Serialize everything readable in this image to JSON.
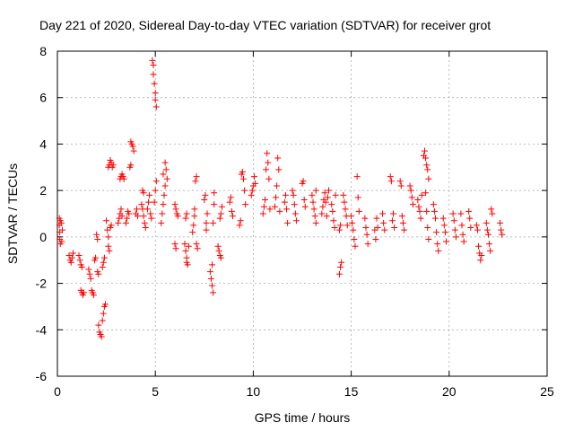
{
  "chart_data": {
    "type": "scatter",
    "title": "Day 221 of 2020, Sidereal Day-to-day VTEC variation (SDTVAR) for receiver grot",
    "xlabel": "GPS time / hours",
    "ylabel": "SDTVAR / TECUs",
    "xlim": [
      0,
      25
    ],
    "ylim": [
      -6,
      8
    ],
    "xticks": [
      0,
      5,
      10,
      15,
      20,
      25
    ],
    "yticks": [
      -6,
      -4,
      -2,
      0,
      2,
      4,
      6,
      8
    ],
    "grid": true,
    "marker": "+",
    "color": "#ff0000",
    "series": [
      {
        "name": "SDTVAR",
        "points": [
          [
            0.1,
            0.8
          ],
          [
            0.1,
            0.5
          ],
          [
            0.12,
            0.2
          ],
          [
            0.12,
            -0.1
          ],
          [
            0.15,
            -0.3
          ],
          [
            0.15,
            0.7
          ],
          [
            0.2,
            0.6
          ],
          [
            0.22,
            -0.2
          ],
          [
            0.25,
            0.3
          ],
          [
            0.6,
            -0.8
          ],
          [
            0.65,
            -1.0
          ],
          [
            0.7,
            -1.1
          ],
          [
            0.75,
            -0.9
          ],
          [
            0.8,
            -0.7
          ],
          [
            1.1,
            -0.8
          ],
          [
            1.15,
            -1.0
          ],
          [
            1.2,
            -1.2
          ],
          [
            1.25,
            -1.3
          ],
          [
            1.2,
            -2.3
          ],
          [
            1.25,
            -2.4
          ],
          [
            1.3,
            -2.5
          ],
          [
            1.35,
            -2.4
          ],
          [
            1.6,
            -1.4
          ],
          [
            1.65,
            -1.6
          ],
          [
            1.7,
            -1.8
          ],
          [
            1.75,
            -2.3
          ],
          [
            1.8,
            -2.4
          ],
          [
            1.85,
            -2.5
          ],
          [
            1.9,
            -1.0
          ],
          [
            1.95,
            -0.9
          ],
          [
            2.0,
            0.1
          ],
          [
            2.05,
            -0.1
          ],
          [
            2.05,
            -1.5
          ],
          [
            2.1,
            -1.6
          ],
          [
            2.1,
            -3.8
          ],
          [
            2.15,
            -4.1
          ],
          [
            2.2,
            -4.2
          ],
          [
            2.25,
            -4.3
          ],
          [
            2.3,
            -3.6
          ],
          [
            2.35,
            -3.3
          ],
          [
            2.4,
            -3.0
          ],
          [
            2.45,
            -2.9
          ],
          [
            2.3,
            -1.3
          ],
          [
            2.35,
            -1.1
          ],
          [
            2.4,
            -0.9
          ],
          [
            2.5,
            0.7
          ],
          [
            2.55,
            0.3
          ],
          [
            2.6,
            0.0
          ],
          [
            2.6,
            -0.4
          ],
          [
            2.65,
            -0.6
          ],
          [
            2.7,
            0.4
          ],
          [
            2.75,
            0.5
          ],
          [
            2.6,
            3.0
          ],
          [
            2.65,
            3.1
          ],
          [
            2.7,
            3.3
          ],
          [
            2.75,
            3.2
          ],
          [
            2.8,
            3.0
          ],
          [
            2.85,
            3.1
          ],
          [
            3.1,
            0.6
          ],
          [
            3.15,
            0.8
          ],
          [
            3.2,
            1.0
          ],
          [
            3.25,
            1.2
          ],
          [
            3.3,
            0.9
          ],
          [
            3.2,
            2.5
          ],
          [
            3.25,
            2.6
          ],
          [
            3.3,
            2.7
          ],
          [
            3.35,
            2.6
          ],
          [
            3.4,
            2.5
          ],
          [
            3.5,
            0.6
          ],
          [
            3.55,
            0.8
          ],
          [
            3.6,
            1.1
          ],
          [
            3.65,
            1.0
          ],
          [
            3.7,
            3.0
          ],
          [
            3.75,
            3.1
          ],
          [
            3.75,
            4.1
          ],
          [
            3.8,
            4.0
          ],
          [
            3.85,
            3.9
          ],
          [
            3.9,
            3.7
          ],
          [
            4.0,
            1.0
          ],
          [
            4.05,
            1.2
          ],
          [
            4.1,
            0.9
          ],
          [
            4.3,
            1.4
          ],
          [
            4.35,
            1.2
          ],
          [
            4.4,
            0.9
          ],
          [
            4.45,
            0.6
          ],
          [
            4.5,
            0.4
          ],
          [
            4.35,
            2.0
          ],
          [
            4.4,
            1.9
          ],
          [
            4.6,
            1.2
          ],
          [
            4.65,
            1.5
          ],
          [
            4.7,
            1.8
          ],
          [
            4.75,
            1.0
          ],
          [
            4.8,
            0.8
          ],
          [
            4.85,
            7.6
          ],
          [
            4.9,
            7.4
          ],
          [
            4.9,
            7.0
          ],
          [
            4.95,
            6.6
          ],
          [
            5.0,
            6.2
          ],
          [
            5.0,
            5.9
          ],
          [
            5.05,
            5.6
          ],
          [
            4.95,
            1.5
          ],
          [
            5.0,
            2.0
          ],
          [
            5.05,
            2.4
          ],
          [
            5.3,
            0.6
          ],
          [
            5.35,
            1.0
          ],
          [
            5.4,
            1.4
          ],
          [
            5.45,
            1.8
          ],
          [
            5.5,
            2.2
          ],
          [
            5.5,
            3.2
          ],
          [
            5.55,
            2.9
          ],
          [
            5.6,
            2.5
          ],
          [
            5.4,
            2.7
          ],
          [
            6.0,
            1.4
          ],
          [
            6.05,
            1.2
          ],
          [
            6.1,
            1.0
          ],
          [
            6.15,
            0.9
          ],
          [
            6.0,
            -0.3
          ],
          [
            6.05,
            -0.5
          ],
          [
            6.5,
            -0.3
          ],
          [
            6.55,
            -0.6
          ],
          [
            6.6,
            -0.9
          ],
          [
            6.6,
            -1.1
          ],
          [
            6.65,
            -1.2
          ],
          [
            6.7,
            -0.4
          ],
          [
            6.55,
            0.8
          ],
          [
            6.6,
            1.0
          ],
          [
            6.9,
            0.2
          ],
          [
            6.95,
            0.5
          ],
          [
            7.0,
            0.9
          ],
          [
            7.0,
            1.2
          ],
          [
            7.05,
            2.4
          ],
          [
            7.1,
            2.6
          ],
          [
            7.1,
            -0.3
          ],
          [
            7.15,
            -0.5
          ],
          [
            7.5,
            1.6
          ],
          [
            7.55,
            1.8
          ],
          [
            7.6,
            0.6
          ],
          [
            7.6,
            0.3
          ],
          [
            7.65,
            1.0
          ],
          [
            7.8,
            -1.5
          ],
          [
            7.85,
            -1.8
          ],
          [
            7.9,
            -2.1
          ],
          [
            7.95,
            -2.4
          ],
          [
            7.9,
            -1.2
          ],
          [
            7.95,
            0.6
          ],
          [
            8.0,
            1.4
          ],
          [
            8.0,
            1.9
          ],
          [
            8.2,
            -0.4
          ],
          [
            8.25,
            -0.6
          ],
          [
            8.3,
            -0.8
          ],
          [
            8.35,
            -0.9
          ],
          [
            8.3,
            0.8
          ],
          [
            8.35,
            1.0
          ],
          [
            8.4,
            1.3
          ],
          [
            8.8,
            1.5
          ],
          [
            8.85,
            1.7
          ],
          [
            8.9,
            1.1
          ],
          [
            8.95,
            0.9
          ],
          [
            9.3,
            0.5
          ],
          [
            9.35,
            0.7
          ],
          [
            9.4,
            2.7
          ],
          [
            9.45,
            2.8
          ],
          [
            9.5,
            2.5
          ],
          [
            9.55,
            2.0
          ],
          [
            9.6,
            1.4
          ],
          [
            9.9,
            1.8
          ],
          [
            9.95,
            2.0
          ],
          [
            10.0,
            2.2
          ],
          [
            10.05,
            2.6
          ],
          [
            10.1,
            2.3
          ],
          [
            10.5,
            1.0
          ],
          [
            10.55,
            1.3
          ],
          [
            10.6,
            1.6
          ],
          [
            10.65,
            2.9
          ],
          [
            10.7,
            3.6
          ],
          [
            10.75,
            3.2
          ],
          [
            10.8,
            2.5
          ],
          [
            10.85,
            1.2
          ],
          [
            11.1,
            1.3
          ],
          [
            11.15,
            1.7
          ],
          [
            11.2,
            2.2
          ],
          [
            11.25,
            3.4
          ],
          [
            11.3,
            2.9
          ],
          [
            11.35,
            1.1
          ],
          [
            11.6,
            1.5
          ],
          [
            11.65,
            1.8
          ],
          [
            11.7,
            1.2
          ],
          [
            11.75,
            0.6
          ],
          [
            12.0,
            2.0
          ],
          [
            12.05,
            1.8
          ],
          [
            12.1,
            1.4
          ],
          [
            12.15,
            1.0
          ],
          [
            12.2,
            0.7
          ],
          [
            12.5,
            2.3
          ],
          [
            12.55,
            2.4
          ],
          [
            12.6,
            1.6
          ],
          [
            12.65,
            1.3
          ],
          [
            13.0,
            1.8
          ],
          [
            13.05,
            1.5
          ],
          [
            13.1,
            1.2
          ],
          [
            13.15,
            0.9
          ],
          [
            13.2,
            0.6
          ],
          [
            13.2,
            2.0
          ],
          [
            13.5,
            1.0
          ],
          [
            13.55,
            1.3
          ],
          [
            13.6,
            1.6
          ],
          [
            13.65,
            1.9
          ],
          [
            13.7,
            1.5
          ],
          [
            13.75,
            0.9
          ],
          [
            13.8,
            1.7
          ],
          [
            13.85,
            2.0
          ],
          [
            14.0,
            1.4
          ],
          [
            14.05,
            1.1
          ],
          [
            14.1,
            0.7
          ],
          [
            14.15,
            0.4
          ],
          [
            14.2,
            1.8
          ],
          [
            14.4,
            -1.6
          ],
          [
            14.45,
            -1.3
          ],
          [
            14.5,
            -1.1
          ],
          [
            14.4,
            0.3
          ],
          [
            14.45,
            0.5
          ],
          [
            14.6,
            1.8
          ],
          [
            14.65,
            1.5
          ],
          [
            14.7,
            1.2
          ],
          [
            14.75,
            0.9
          ],
          [
            14.8,
            0.5
          ],
          [
            15.0,
            0.9
          ],
          [
            15.05,
            0.6
          ],
          [
            15.1,
            0.3
          ],
          [
            15.15,
            -0.1
          ],
          [
            15.2,
            -0.4
          ],
          [
            15.3,
            2.6
          ],
          [
            15.35,
            1.7
          ],
          [
            15.4,
            1.1
          ],
          [
            15.7,
            0.8
          ],
          [
            15.75,
            0.4
          ],
          [
            15.8,
            0.1
          ],
          [
            15.85,
            -0.3
          ],
          [
            16.2,
            0.3
          ],
          [
            16.25,
            -0.1
          ],
          [
            16.3,
            0.8
          ],
          [
            16.35,
            0.4
          ],
          [
            16.6,
            1.0
          ],
          [
            16.65,
            0.6
          ],
          [
            16.7,
            0.3
          ],
          [
            17.0,
            2.6
          ],
          [
            17.05,
            2.4
          ],
          [
            17.1,
            0.7
          ],
          [
            17.15,
            1.0
          ],
          [
            17.2,
            0.4
          ],
          [
            17.5,
            2.4
          ],
          [
            17.55,
            2.2
          ],
          [
            17.6,
            0.9
          ],
          [
            17.65,
            0.6
          ],
          [
            17.7,
            0.3
          ],
          [
            18.0,
            2.2
          ],
          [
            18.05,
            2.0
          ],
          [
            18.1,
            1.7
          ],
          [
            18.15,
            1.4
          ],
          [
            18.4,
            1.6
          ],
          [
            18.45,
            1.3
          ],
          [
            18.5,
            1.1
          ],
          [
            18.55,
            0.8
          ],
          [
            18.6,
            1.8
          ],
          [
            18.7,
            3.5
          ],
          [
            18.75,
            3.7
          ],
          [
            18.8,
            3.4
          ],
          [
            18.85,
            3.1
          ],
          [
            18.9,
            2.9
          ],
          [
            18.95,
            2.5
          ],
          [
            18.8,
            1.9
          ],
          [
            18.85,
            1.1
          ],
          [
            18.9,
            0.4
          ],
          [
            18.95,
            -0.1
          ],
          [
            19.2,
            1.4
          ],
          [
            19.25,
            1.1
          ],
          [
            19.3,
            0.8
          ],
          [
            19.35,
            0.2
          ],
          [
            19.4,
            -0.3
          ],
          [
            19.45,
            -0.6
          ],
          [
            19.7,
            0.8
          ],
          [
            19.75,
            0.5
          ],
          [
            19.8,
            0.2
          ],
          [
            19.85,
            -0.2
          ],
          [
            20.2,
            1.0
          ],
          [
            20.25,
            0.7
          ],
          [
            20.3,
            0.3
          ],
          [
            20.35,
            0.0
          ],
          [
            20.6,
            1.0
          ],
          [
            20.65,
            0.5
          ],
          [
            20.7,
            0.1
          ],
          [
            20.75,
            -0.2
          ],
          [
            21.0,
            1.1
          ],
          [
            21.05,
            0.8
          ],
          [
            21.1,
            0.4
          ],
          [
            21.4,
            0.5
          ],
          [
            21.45,
            0.3
          ],
          [
            21.5,
            -0.4
          ],
          [
            21.55,
            -0.7
          ],
          [
            21.6,
            -1.0
          ],
          [
            21.65,
            -0.8
          ],
          [
            21.9,
            0.6
          ],
          [
            21.95,
            0.3
          ],
          [
            22.0,
            0.1
          ],
          [
            22.05,
            -0.3
          ],
          [
            22.1,
            -0.6
          ],
          [
            22.15,
            1.2
          ],
          [
            22.2,
            1.0
          ],
          [
            22.6,
            0.6
          ],
          [
            22.65,
            0.3
          ],
          [
            22.7,
            0.1
          ]
        ]
      }
    ]
  }
}
